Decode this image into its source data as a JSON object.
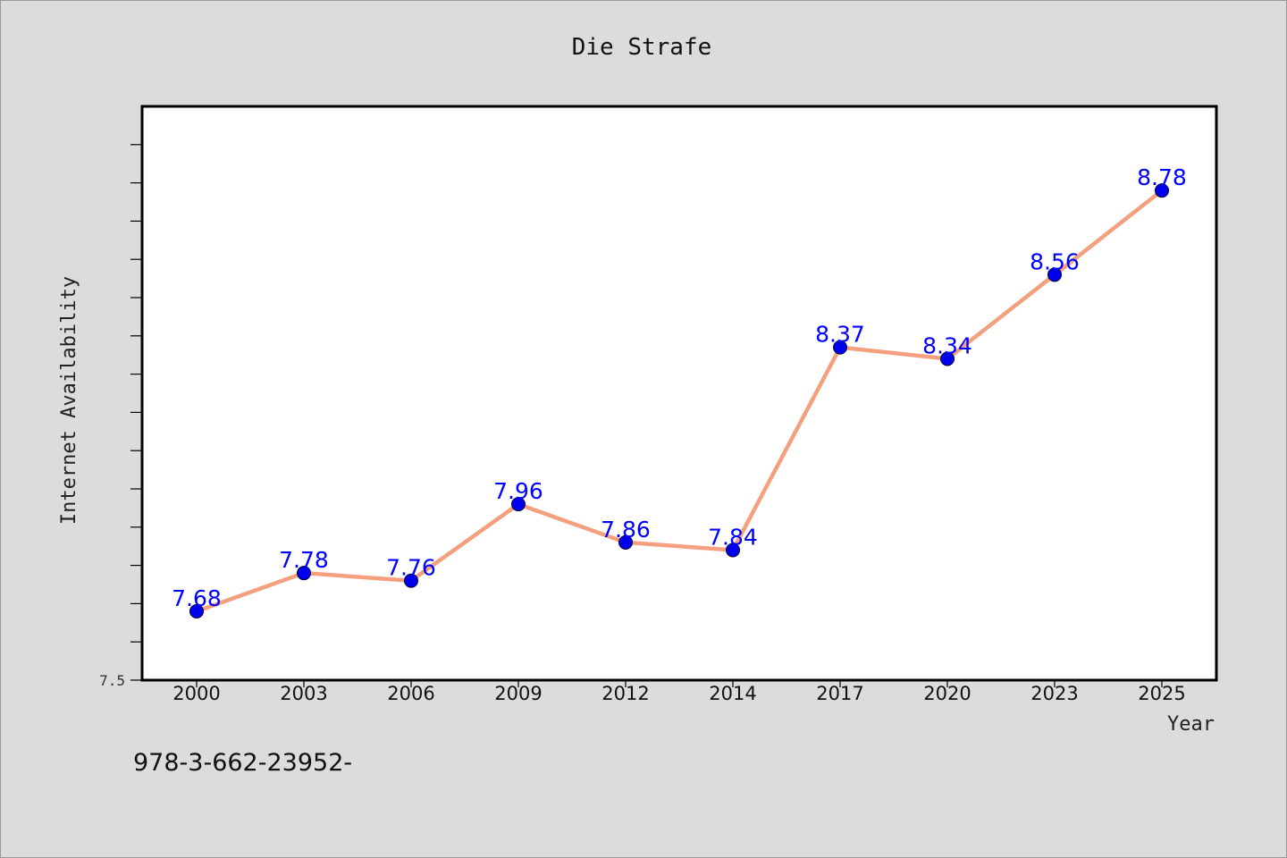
{
  "chart_data": {
    "type": "line",
    "title": "Die Strafe",
    "xlabel": "Year",
    "ylabel": "Internet Availability",
    "categories": [
      "2000",
      "2003",
      "2006",
      "2009",
      "2012",
      "2014",
      "2017",
      "2020",
      "2023",
      "2025"
    ],
    "series": [
      {
        "values": [
          7.68,
          7.78,
          7.76,
          7.96,
          7.86,
          7.84,
          8.37,
          8.34,
          8.56,
          8.78
        ],
        "labels": [
          "7.68",
          "7.78",
          "7.76",
          "7.96",
          "7.86",
          "7.84",
          "8.37",
          "8.34",
          "8.56",
          "8.78"
        ],
        "line_color": "#f4a07e",
        "marker_color": "#0000ee"
      }
    ],
    "ylim": [
      7.5,
      9.0
    ],
    "yticks_labeled": [
      "7.5"
    ],
    "grid": false,
    "legend": "none"
  },
  "annotation": "978-3-662-23952-",
  "colors": {
    "background": "#dcdcdc",
    "plot_area": "#ffffff",
    "data_label": "#0000ff"
  }
}
